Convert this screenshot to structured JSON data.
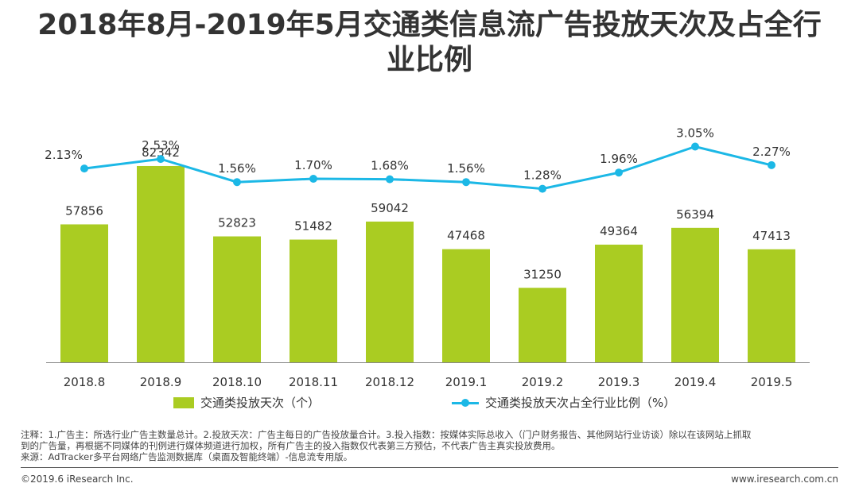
{
  "header": {
    "title_line1": "2018年8月-2019年5月交通类信息流广告投放天次及占全行",
    "title_line2": "业比例"
  },
  "chart_data": {
    "type": "bar",
    "categories": [
      "2018.8",
      "2018.9",
      "2018.10",
      "2018.11",
      "2018.12",
      "2019.1",
      "2019.2",
      "2019.3",
      "2019.4",
      "2019.5"
    ],
    "series": [
      {
        "name": "交通类投放天次（个）",
        "type": "bar",
        "color": "#aacc22",
        "values": [
          57856,
          82342,
          52823,
          51482,
          59042,
          47468,
          31250,
          49364,
          56394,
          47413
        ]
      },
      {
        "name": "交通类投放天次占全行业比例（%）",
        "type": "line",
        "color": "#1cb8e6",
        "values": [
          2.13,
          2.53,
          1.56,
          1.7,
          1.68,
          1.56,
          1.28,
          1.96,
          3.05,
          2.27
        ],
        "labels": [
          "2.13%",
          "2.53%",
          "1.56%",
          "1.70%",
          "1.68%",
          "1.56%",
          "1.28%",
          "1.96%",
          "3.05%",
          "2.27%"
        ]
      }
    ],
    "ylim_bar": [
      0,
      100000
    ],
    "ylim_line": [
      -6,
      4
    ],
    "grid": false,
    "legend": "bottom"
  },
  "footnote": {
    "note_line1": "注释：1.广告主：所选行业广告主数量总计。2.投放天次：广告主每日的广告投放量合计。3.投入指数：按媒体实际总收入（门户财务报告、其他网站行业访谈）除以在该网站上抓取",
    "note_line2": "到的广告量，再根据不同媒体的刊例进行媒体频道进行加权，所有广告主的投入指数仅代表第三方预估，不代表广告主真实投放费用。",
    "source": "来源：AdTracker多平台网络广告监测数据库（桌面及智能终端）-信息流专用版。"
  },
  "footer": {
    "copyright": "©2019.6 iResearch Inc.",
    "site": "www.iresearch.com.cn"
  }
}
